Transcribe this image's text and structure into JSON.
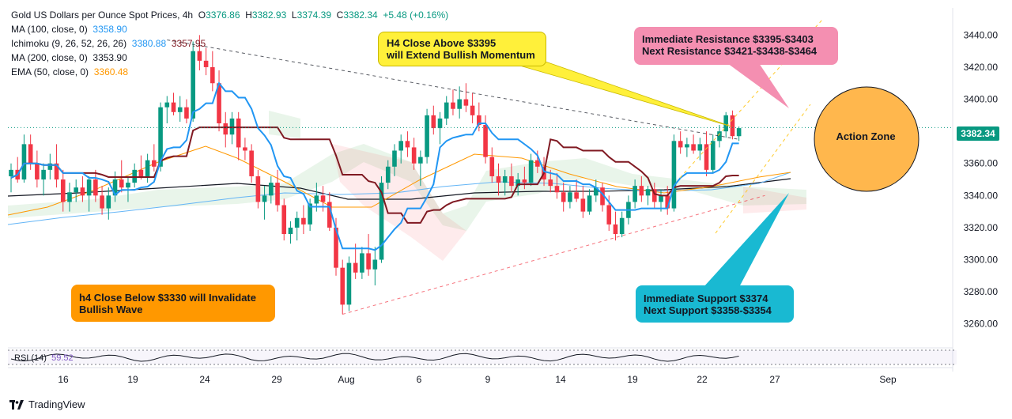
{
  "legend": {
    "symbol": "Gold US Dollars per Ounce Spot Prices, 4h",
    "o_label": "O",
    "o": "3376.86",
    "h_label": "H",
    "h": "3382.93",
    "l_label": "L",
    "l": "3374.39",
    "c_label": "C",
    "c": "3382.34",
    "change": "+5.48 (+0.16%)",
    "indicators": [
      {
        "name": "MA (100, close, 0)",
        "value": "3358.90",
        "color": "#2196f3"
      },
      {
        "name": "Ichimoku (9, 26, 52, 26, 26)",
        "value": "3380.88",
        "value2": "3357.95",
        "color": "#2196f3",
        "color2": "#801922"
      },
      {
        "name": "MA (200, close, 0)",
        "value": "3353.90",
        "color": "#131722"
      },
      {
        "name": "EMA (50, close, 0)",
        "value": "3360.48",
        "color": "#ff9800"
      }
    ]
  },
  "annotations": {
    "bullish": "H4 Close Above $3395\nwill Extend Bullish Momentum",
    "resistance": "Immediate Resistance $3395-$3403\nNext Resistance $3421-$3438-$3464",
    "action_zone": "Action Zone",
    "support": "Immediate Support $3374\nNext Support $3358-$3354",
    "invalidate": "h4 Close Below $3330 will Invalidate\nBullish Wave"
  },
  "price_tag": "3382.34",
  "rsi_label": "RSI (14)",
  "rsi_value": "59.52",
  "brand": "TradingView",
  "colors": {
    "up": "#089981",
    "down": "#f23645",
    "bull_box": "#fff03a",
    "resistance_box": "#f48fb1",
    "support_box": "#19b9d2",
    "invalid_box": "#ff9800",
    "action_zone": "#ffb74d"
  },
  "chart_data": {
    "type": "candlestick",
    "title": "Gold US Dollars per Ounce Spot Prices, 4h",
    "y_axis": {
      "ticks": [
        3260,
        3280,
        3300,
        3320,
        3340,
        3360,
        3380,
        3400,
        3420,
        3440
      ],
      "range": [
        3250,
        3452
      ],
      "position": "right"
    },
    "x_axis": {
      "ticks": [
        "16",
        "19",
        "24",
        "29",
        "Aug",
        "6",
        "9",
        "14",
        "19",
        "22",
        "27",
        "Sep"
      ]
    },
    "last_price": 3382.34,
    "ohlc": [
      [
        3352,
        3360,
        3342,
        3356
      ],
      [
        3356,
        3364,
        3348,
        3350
      ],
      [
        3350,
        3378,
        3348,
        3372
      ],
      [
        3372,
        3378,
        3356,
        3360
      ],
      [
        3360,
        3368,
        3345,
        3350
      ],
      [
        3350,
        3360,
        3340,
        3356
      ],
      [
        3356,
        3366,
        3350,
        3360
      ],
      [
        3360,
        3372,
        3345,
        3350
      ],
      [
        3350,
        3356,
        3330,
        3336
      ],
      [
        3336,
        3348,
        3330,
        3342
      ],
      [
        3342,
        3350,
        3336,
        3345
      ],
      [
        3345,
        3352,
        3336,
        3340
      ],
      [
        3340,
        3352,
        3330,
        3350
      ],
      [
        3350,
        3356,
        3336,
        3340
      ],
      [
        3340,
        3346,
        3328,
        3332
      ],
      [
        3332,
        3345,
        3325,
        3340
      ],
      [
        3340,
        3355,
        3336,
        3350
      ],
      [
        3350,
        3362,
        3342,
        3345
      ],
      [
        3345,
        3352,
        3336,
        3348
      ],
      [
        3348,
        3360,
        3345,
        3356
      ],
      [
        3356,
        3365,
        3350,
        3352
      ],
      [
        3352,
        3366,
        3348,
        3362
      ],
      [
        3362,
        3372,
        3355,
        3358
      ],
      [
        3358,
        3398,
        3355,
        3395
      ],
      [
        3395,
        3402,
        3385,
        3398
      ],
      [
        3398,
        3404,
        3390,
        3392
      ],
      [
        3392,
        3402,
        3386,
        3395
      ],
      [
        3395,
        3400,
        3385,
        3388
      ],
      [
        3388,
        3436,
        3386,
        3430
      ],
      [
        3430,
        3440,
        3418,
        3424
      ],
      [
        3424,
        3432,
        3415,
        3420
      ],
      [
        3420,
        3430,
        3405,
        3410
      ],
      [
        3410,
        3418,
        3380,
        3385
      ],
      [
        3385,
        3392,
        3370,
        3378
      ],
      [
        3378,
        3392,
        3372,
        3388
      ],
      [
        3388,
        3392,
        3362,
        3370
      ],
      [
        3370,
        3376,
        3362,
        3368
      ],
      [
        3368,
        3372,
        3348,
        3352
      ],
      [
        3352,
        3356,
        3332,
        3336
      ],
      [
        3336,
        3346,
        3325,
        3340
      ],
      [
        3340,
        3352,
        3335,
        3348
      ],
      [
        3348,
        3356,
        3330,
        3334
      ],
      [
        3334,
        3338,
        3312,
        3316
      ],
      [
        3316,
        3324,
        3310,
        3320
      ],
      [
        3320,
        3330,
        3312,
        3326
      ],
      [
        3326,
        3334,
        3316,
        3322
      ],
      [
        3322,
        3338,
        3318,
        3335
      ],
      [
        3335,
        3348,
        3330,
        3340
      ],
      [
        3340,
        3346,
        3330,
        3336
      ],
      [
        3336,
        3342,
        3318,
        3320
      ],
      [
        3320,
        3326,
        3290,
        3295
      ],
      [
        3295,
        3300,
        3266,
        3272
      ],
      [
        3272,
        3302,
        3268,
        3298
      ],
      [
        3298,
        3310,
        3288,
        3292
      ],
      [
        3292,
        3308,
        3288,
        3304
      ],
      [
        3304,
        3316,
        3290,
        3294
      ],
      [
        3294,
        3308,
        3284,
        3300
      ],
      [
        3300,
        3352,
        3298,
        3348
      ],
      [
        3348,
        3362,
        3344,
        3358
      ],
      [
        3358,
        3372,
        3352,
        3368
      ],
      [
        3368,
        3378,
        3360,
        3374
      ],
      [
        3374,
        3380,
        3364,
        3370
      ],
      [
        3370,
        3376,
        3356,
        3360
      ],
      [
        3360,
        3368,
        3346,
        3364
      ],
      [
        3364,
        3394,
        3360,
        3390
      ],
      [
        3390,
        3396,
        3378,
        3382
      ],
      [
        3382,
        3392,
        3372,
        3388
      ],
      [
        3388,
        3402,
        3384,
        3398
      ],
      [
        3398,
        3406,
        3390,
        3394
      ],
      [
        3394,
        3408,
        3388,
        3400
      ],
      [
        3400,
        3410,
        3392,
        3396
      ],
      [
        3396,
        3404,
        3385,
        3390
      ],
      [
        3390,
        3398,
        3380,
        3384
      ],
      [
        3384,
        3390,
        3360,
        3364
      ],
      [
        3364,
        3370,
        3348,
        3352
      ],
      [
        3352,
        3360,
        3340,
        3348
      ],
      [
        3348,
        3356,
        3340,
        3352
      ],
      [
        3352,
        3360,
        3342,
        3346
      ],
      [
        3346,
        3354,
        3340,
        3350
      ],
      [
        3350,
        3358,
        3344,
        3348
      ],
      [
        3348,
        3366,
        3346,
        3362
      ],
      [
        3362,
        3368,
        3354,
        3358
      ],
      [
        3358,
        3364,
        3346,
        3350
      ],
      [
        3350,
        3356,
        3342,
        3346
      ],
      [
        3346,
        3354,
        3338,
        3342
      ],
      [
        3342,
        3348,
        3330,
        3336
      ],
      [
        3336,
        3346,
        3332,
        3342
      ],
      [
        3342,
        3350,
        3336,
        3338
      ],
      [
        3338,
        3346,
        3326,
        3330
      ],
      [
        3330,
        3344,
        3328,
        3340
      ],
      [
        3340,
        3350,
        3336,
        3345
      ],
      [
        3345,
        3348,
        3330,
        3334
      ],
      [
        3334,
        3340,
        3318,
        3322
      ],
      [
        3322,
        3330,
        3312,
        3316
      ],
      [
        3316,
        3330,
        3314,
        3326
      ],
      [
        3326,
        3340,
        3322,
        3336
      ],
      [
        3336,
        3350,
        3332,
        3346
      ],
      [
        3346,
        3352,
        3336,
        3340
      ],
      [
        3340,
        3346,
        3334,
        3344
      ],
      [
        3344,
        3348,
        3332,
        3336
      ],
      [
        3336,
        3344,
        3330,
        3340
      ],
      [
        3340,
        3346,
        3328,
        3332
      ],
      [
        3332,
        3378,
        3330,
        3374
      ],
      [
        3374,
        3380,
        3366,
        3370
      ],
      [
        3370,
        3376,
        3364,
        3372
      ],
      [
        3372,
        3378,
        3366,
        3368
      ],
      [
        3368,
        3376,
        3362,
        3372
      ],
      [
        3372,
        3380,
        3352,
        3356
      ],
      [
        3356,
        3378,
        3354,
        3374
      ],
      [
        3374,
        3384,
        3370,
        3380
      ],
      [
        3380,
        3392,
        3376,
        3390
      ],
      [
        3390,
        3393,
        3375,
        3377
      ],
      [
        3377,
        3383,
        3374,
        3382
      ]
    ],
    "trend_lines": [
      {
        "name": "descending resistance",
        "from": [
          24,
          3437
        ],
        "to": [
          112,
          3375
        ],
        "style": "dashed"
      },
      {
        "name": "ascending support",
        "from": [
          51,
          3266
        ],
        "to": [
          116,
          3340
        ],
        "style": "dashed"
      }
    ],
    "zones": [
      {
        "name": "Action Zone",
        "center_price": 3382,
        "at": "right"
      }
    ]
  }
}
